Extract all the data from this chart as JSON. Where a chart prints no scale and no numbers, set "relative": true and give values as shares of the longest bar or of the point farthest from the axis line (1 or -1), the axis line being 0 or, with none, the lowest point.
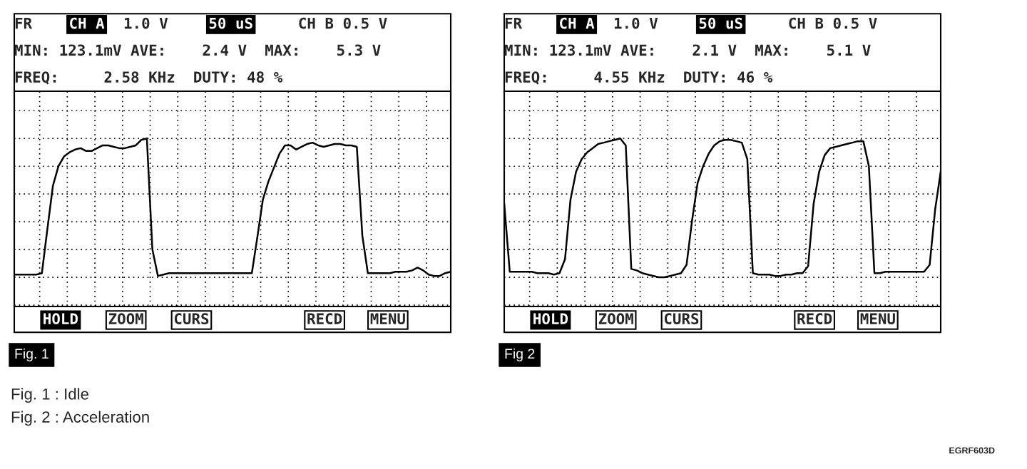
{
  "chart_data": [
    {
      "type": "line",
      "relative": true,
      "grid": true,
      "tick_labels": false,
      "line_style": "solid",
      "categories": [
        null,
        null,
        null,
        null,
        null,
        null,
        null,
        null,
        null,
        null,
        null,
        null,
        null,
        null,
        null,
        null,
        null,
        null,
        null,
        null,
        null,
        null,
        null,
        null,
        null,
        null,
        null,
        null,
        null,
        null,
        null,
        null,
        null,
        null,
        null,
        null,
        null,
        null,
        null,
        null,
        null,
        null,
        null,
        null,
        null,
        null,
        null,
        null,
        null,
        null,
        null,
        null,
        null,
        null,
        null,
        null,
        null,
        null,
        null,
        null,
        null,
        null,
        null,
        null,
        null,
        null,
        null,
        null,
        null,
        null,
        null,
        null,
        null,
        null,
        null,
        null,
        null,
        null,
        null,
        null
      ],
      "series": [
        {
          "color": "#000000",
          "values": [
            0.02,
            0.02,
            0.02,
            0.02,
            0.02,
            0.03,
            0.35,
            0.66,
            0.8,
            0.87,
            0.9,
            0.92,
            0.93,
            0.91,
            0.91,
            0.93,
            0.95,
            0.95,
            0.94,
            0.93,
            0.93,
            0.94,
            0.95,
            0.99,
            1.0,
            0.2,
            0.01,
            0.02,
            0.03,
            0.03,
            0.03,
            0.03,
            0.03,
            0.03,
            0.03,
            0.03,
            0.03,
            0.03,
            0.03,
            0.03,
            0.03,
            0.03,
            0.03,
            0.03,
            0.29,
            0.56,
            0.69,
            0.79,
            0.89,
            0.95,
            0.95,
            0.92,
            0.94,
            0.96,
            0.97,
            0.95,
            0.94,
            0.95,
            0.96,
            0.96,
            0.95,
            0.95,
            0.94,
            0.3,
            0.03,
            0.03,
            0.03,
            0.03,
            0.03,
            0.04,
            0.04,
            0.04,
            0.05,
            0.07,
            0.05,
            0.02,
            0.01,
            0.01,
            0.03,
            0.04
          ]
        }
      ],
      "annotations": [
        "FR",
        "CH A",
        "1.0 V",
        "50 uS",
        "CH B 0.5 V",
        "MIN: 123.1mV AVE:    2.4 V  MAX:    5.3 V",
        "FREQ:     2.58 KHz  DUTY: 48 %",
        "HOLD",
        "ZOOM",
        "CURS",
        "RECD",
        "MENU",
        "Fig. 1",
        "Fig. 1 : Idle",
        "Fig. 2 : Acceleration",
        "EGRF603D"
      ]
    },
    {
      "type": "line",
      "relative": true,
      "grid": true,
      "tick_labels": false,
      "line_style": "solid",
      "categories": [
        null,
        null,
        null,
        null,
        null,
        null,
        null,
        null,
        null,
        null,
        null,
        null,
        null,
        null,
        null,
        null,
        null,
        null,
        null,
        null,
        null,
        null,
        null,
        null,
        null,
        null,
        null,
        null,
        null,
        null,
        null,
        null,
        null,
        null,
        null,
        null,
        null,
        null,
        null,
        null,
        null,
        null,
        null,
        null,
        null,
        null,
        null,
        null,
        null,
        null,
        null,
        null,
        null,
        null,
        null,
        null,
        null,
        null,
        null,
        null,
        null,
        null,
        null,
        null,
        null,
        null,
        null,
        null,
        null,
        null,
        null,
        null,
        null,
        null,
        null,
        null,
        null,
        null,
        null,
        null
      ],
      "series": [
        {
          "color": "#000000",
          "values": [
            0.53,
            0.04,
            0.04,
            0.04,
            0.04,
            0.04,
            0.03,
            0.03,
            0.03,
            0.02,
            0.03,
            0.13,
            0.56,
            0.76,
            0.85,
            0.9,
            0.93,
            0.96,
            0.97,
            0.98,
            0.99,
            1.0,
            0.95,
            0.06,
            0.05,
            0.03,
            0.02,
            0.01,
            0,
            0,
            0.01,
            0.02,
            0.03,
            0.09,
            0.41,
            0.68,
            0.8,
            0.89,
            0.95,
            0.98,
            0.99,
            0.99,
            0.98,
            0.97,
            0.85,
            0.03,
            0.02,
            0.02,
            0.02,
            0.01,
            0.01,
            0.02,
            0.02,
            0.03,
            0.03,
            0.08,
            0.53,
            0.76,
            0.88,
            0.93,
            0.94,
            0.95,
            0.96,
            0.97,
            0.98,
            0.98,
            0.8,
            0.03,
            0.03,
            0.04,
            0.04,
            0.04,
            0.04,
            0.04,
            0.04,
            0.04,
            0.04,
            0.09,
            0.49,
            0.76
          ]
        }
      ],
      "annotations": [
        "FR",
        "CH A",
        "1.0 V",
        "50 uS",
        "CH B 0.5 V",
        "MIN: 123.1mV AVE:    2.1 V  MAX:    5.1 V",
        "FREQ:     4.55 KHz  DUTY: 46 %",
        "HOLD",
        "ZOOM",
        "CURS",
        "RECD",
        "MENU",
        "Fig 2"
      ]
    }
  ]
}
